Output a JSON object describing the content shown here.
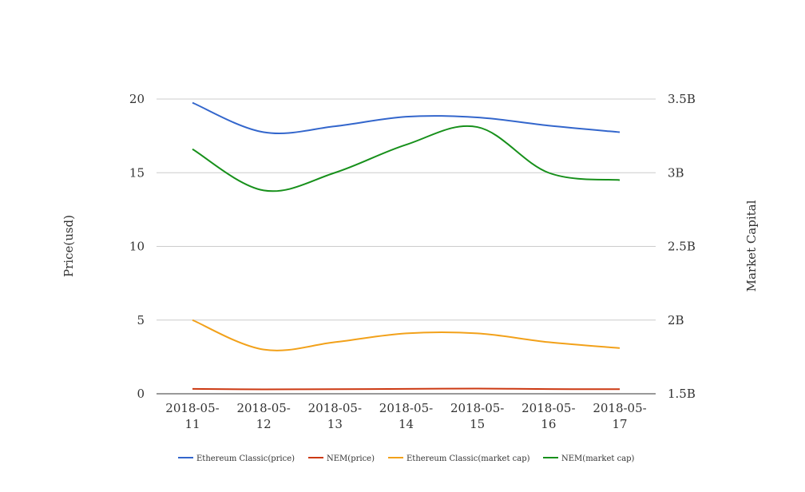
{
  "chart_data": {
    "type": "line",
    "title": "",
    "xlabel": "",
    "ylabel": "Price(usd)",
    "y2label": "Market Capital",
    "categories": [
      "2018-05-11",
      "2018-05-12",
      "2018-05-13",
      "2018-05-14",
      "2018-05-15",
      "2018-05-16",
      "2018-05-17"
    ],
    "x_tick_labels": [
      [
        "2018-05-",
        "11"
      ],
      [
        "2018-05-",
        "12"
      ],
      [
        "2018-05-",
        "13"
      ],
      [
        "2018-05-",
        "14"
      ],
      [
        "2018-05-",
        "15"
      ],
      [
        "2018-05-",
        "16"
      ],
      [
        "2018-05-",
        "17"
      ]
    ],
    "ylim": [
      0,
      20
    ],
    "y_ticks": [
      0,
      5,
      10,
      15,
      20
    ],
    "y2lim": [
      1500000000,
      3500000000
    ],
    "y2_ticks": [
      1500000000,
      2000000000,
      2500000000,
      3000000000,
      3500000000
    ],
    "y2_tick_labels": [
      "1.5B",
      "2B",
      "2.5B",
      "3B",
      "3.5B"
    ],
    "grid": true,
    "legend_position": "bottom",
    "series": [
      {
        "name": "Ethereum Classic(price)",
        "axis": "left",
        "color": "#3366cc",
        "values": [
          19.75,
          17.75,
          18.15,
          18.8,
          18.75,
          18.2,
          17.75
        ]
      },
      {
        "name": "NEM(price)",
        "axis": "left",
        "color": "#cc3912",
        "values": [
          0.33,
          0.3,
          0.31,
          0.33,
          0.35,
          0.32,
          0.31
        ]
      },
      {
        "name": "Ethereum Classic(market cap)",
        "axis": "right",
        "color": "#f2a11a",
        "values": [
          2000000000,
          1800000000,
          1850000000,
          1910000000,
          1910000000,
          1850000000,
          1810000000
        ]
      },
      {
        "name": "NEM(market cap)",
        "axis": "right",
        "color": "#17901b",
        "values": [
          3160000000,
          2880000000,
          3000000000,
          3190000000,
          3310000000,
          3000000000,
          2950000000
        ]
      }
    ]
  }
}
